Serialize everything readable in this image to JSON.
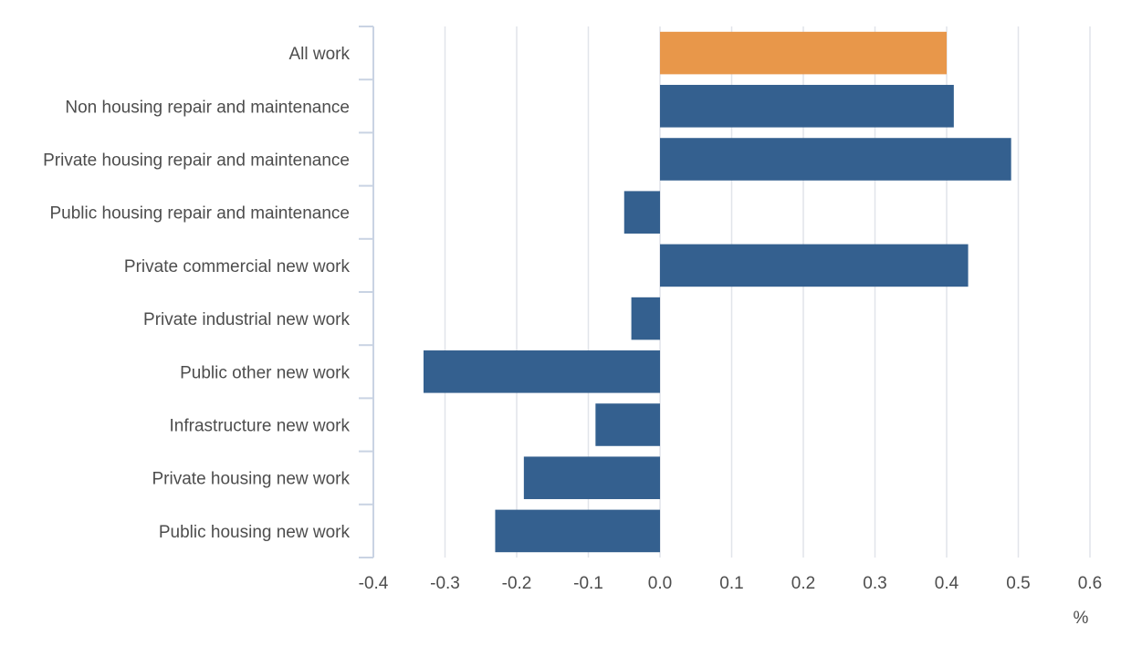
{
  "chart_data": {
    "type": "bar",
    "orientation": "horizontal",
    "categories": [
      "All work",
      "Non housing repair and maintenance",
      "Private housing repair and maintenance",
      "Public housing repair and maintenance",
      "Private commercial new work",
      "Private industrial new work",
      "Public other new work",
      "Infrastructure new work",
      "Private housing new work",
      "Public housing new work"
    ],
    "values": [
      0.4,
      0.41,
      0.49,
      -0.05,
      0.43,
      -0.04,
      -0.33,
      -0.09,
      -0.19,
      -0.23
    ],
    "highlight_index": 0,
    "colors": {
      "highlight": "#E8974A",
      "default": "#34608F",
      "grid": "#e1e4ea",
      "axis": "#c9d3e3"
    },
    "xlim": [
      -0.4,
      0.6
    ],
    "xticks": [
      -0.4,
      -0.3,
      -0.2,
      -0.1,
      0.0,
      0.1,
      0.2,
      0.3,
      0.4,
      0.5,
      0.6
    ],
    "xtick_labels": [
      "-0.4",
      "-0.3",
      "-0.2",
      "-0.1",
      "0.0",
      "0.1",
      "0.2",
      "0.3",
      "0.4",
      "0.5",
      "0.6"
    ],
    "xlabel": "%",
    "grid": true
  }
}
